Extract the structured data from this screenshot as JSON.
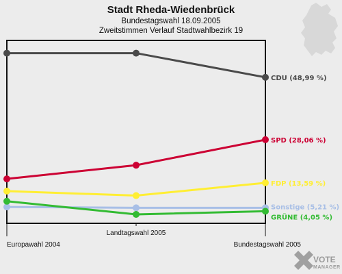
{
  "chart_data": {
    "type": "line",
    "title": "Stadt Rheda-Wiedenbrück",
    "subtitle_lines": [
      "Bundestagswahl 18.09.2005",
      "Zweitstimmen Verlauf Stadtwahlbezirk 19"
    ],
    "categories": [
      "Europawahl 2004",
      "Landtagswahl 2005",
      "Bundestagswahl 2005"
    ],
    "ylim": [
      0,
      57
    ],
    "grid": false,
    "legend": "right end labels",
    "series": [
      {
        "name": "CDU",
        "label": "CDU (48,99 %)",
        "color": "#4a4a4a",
        "values": [
          57.1,
          57.1,
          48.99
        ]
      },
      {
        "name": "SPD",
        "label": "SPD (28,06 %)",
        "color": "#cc0033",
        "values": [
          14.9,
          19.5,
          28.06
        ]
      },
      {
        "name": "FDP",
        "label": "FDP (13,59 %)",
        "color": "#ffee33",
        "values": [
          10.8,
          9.3,
          13.59
        ]
      },
      {
        "name": "Sonstige",
        "label": "Sonstige (5,21 %)",
        "color": "#a8bfe6",
        "values": [
          5.5,
          5.2,
          5.21
        ]
      },
      {
        "name": "GRÜNE",
        "label": "GRÜNE (4,05 %)",
        "color": "#33bb33",
        "values": [
          7.4,
          3.0,
          4.05
        ]
      }
    ]
  },
  "branding": {
    "logo_main": "VOTE",
    "logo_sub": "MANAGER",
    "map_color": "#d8d8d8",
    "logo_color": "#9a9a9a"
  }
}
